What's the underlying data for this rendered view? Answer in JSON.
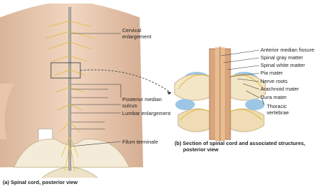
{
  "panel_a": {
    "caption": "(a) Spinal cord, posterior view",
    "labels": [
      [
        "Cervical",
        "enlargement"
      ],
      [
        "Posterior median",
        "sulcus"
      ],
      [
        "Lumbar enlargement"
      ],
      [
        "Filum terminale"
      ]
    ]
  },
  "panel_b": {
    "caption": [
      "(b) Section of spinal cord and associated structures,",
      "posterior view"
    ],
    "labels": [
      [
        "Anterior median fissure"
      ],
      [
        "Spinal gray matter"
      ],
      [
        "Spinal white matter"
      ],
      [
        "Pia mater"
      ],
      [
        "Nerve roots"
      ],
      [
        "Arachnoid mater"
      ],
      [
        "Dura mater"
      ],
      [
        "Thoracic",
        "vertebrae"
      ]
    ]
  }
}
